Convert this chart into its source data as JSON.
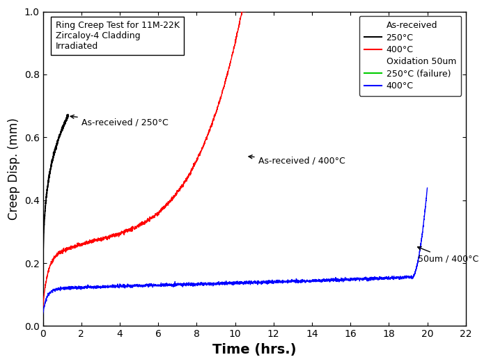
{
  "title": "",
  "xlabel": "Time (hrs.)",
  "ylabel": "Creep Disp. (mm)",
  "xlim": [
    0,
    22
  ],
  "ylim": [
    0.0,
    1.0
  ],
  "xticks": [
    0,
    2,
    4,
    6,
    8,
    10,
    12,
    14,
    16,
    18,
    20,
    22
  ],
  "yticks": [
    0.0,
    0.2,
    0.4,
    0.6,
    0.8,
    1.0
  ],
  "annotation_box": "Ring Creep Test for 11M-22K\nZircaloy-4 Cladding\nIrradiated",
  "legend_title_1": "As-received",
  "legend_entry_black": "250°C",
  "legend_entry_red": "400°C",
  "legend_title_2": "Oxidation 50um",
  "legend_entry_green": "250°C (failure)",
  "legend_entry_blue": "400°C",
  "annot1_text": "As-received / 250°C",
  "annot2_text": "As-received / 400°C",
  "annot3_text": "50um / 400°C",
  "color_black": "#000000",
  "color_red": "#ff0000",
  "color_green": "#00cc00",
  "color_blue": "#0000ff",
  "background_color": "#ffffff"
}
